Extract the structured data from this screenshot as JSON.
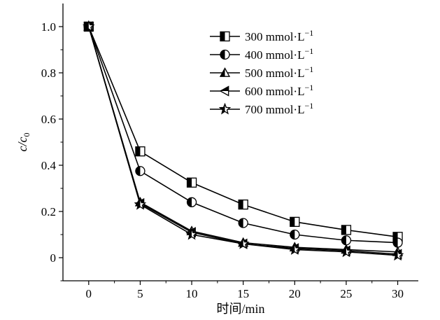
{
  "chart_data": {
    "type": "line",
    "title": "",
    "xlabel": "时间/min",
    "ylabel": "c/c0",
    "xlim": [
      -2.5,
      32
    ],
    "ylim": [
      -0.1,
      1.1
    ],
    "x_ticks": [
      0,
      5,
      10,
      15,
      20,
      25,
      30
    ],
    "y_ticks": [
      0,
      0.2,
      0.4,
      0.6,
      0.8,
      1.0
    ],
    "x_tick_labels": [
      "0",
      "5",
      "10",
      "15",
      "20",
      "25",
      "30"
    ],
    "y_tick_labels": [
      "0",
      "0.2",
      "0.4",
      "0.6",
      "0.8",
      "1.0"
    ],
    "grid": false,
    "legend_position": "top-right",
    "x": [
      0,
      5,
      10,
      15,
      20,
      25,
      30
    ],
    "series": [
      {
        "name": "300 mmol·L−1",
        "marker": "square-half",
        "values": [
          1.0,
          0.46,
          0.325,
          0.23,
          0.155,
          0.12,
          0.09
        ]
      },
      {
        "name": "400 mmol·L−1",
        "marker": "circle-half",
        "values": [
          1.0,
          0.375,
          0.24,
          0.15,
          0.1,
          0.075,
          0.065
        ]
      },
      {
        "name": "500 mmol·L−1",
        "marker": "triangle-up-half",
        "values": [
          1.0,
          0.24,
          0.115,
          0.065,
          0.045,
          0.035,
          0.025
        ]
      },
      {
        "name": "600 mmol·L−1",
        "marker": "triangle-left-half",
        "values": [
          1.0,
          0.235,
          0.11,
          0.06,
          0.04,
          0.03,
          0.015
        ]
      },
      {
        "name": "700 mmol·L−1",
        "marker": "star-half",
        "values": [
          1.0,
          0.23,
          0.1,
          0.06,
          0.035,
          0.025,
          0.01
        ]
      }
    ]
  }
}
